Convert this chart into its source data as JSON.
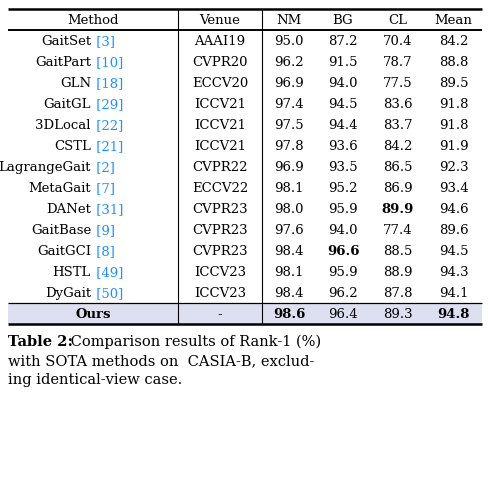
{
  "headers": [
    "Method",
    "Venue",
    "NM",
    "BG",
    "CL",
    "Mean"
  ],
  "rows": [
    [
      "GaitSet",
      "3",
      "AAAI19",
      "95.0",
      "87.2",
      "70.4",
      "84.2",
      false,
      false,
      false,
      false
    ],
    [
      "GaitPart",
      "10",
      "CVPR20",
      "96.2",
      "91.5",
      "78.7",
      "88.8",
      false,
      false,
      false,
      false
    ],
    [
      "GLN",
      "18",
      "ECCV20",
      "96.9",
      "94.0",
      "77.5",
      "89.5",
      false,
      false,
      false,
      false
    ],
    [
      "GaitGL",
      "29",
      "ICCV21",
      "97.4",
      "94.5",
      "83.6",
      "91.8",
      false,
      false,
      false,
      false
    ],
    [
      "3DLocal",
      "22",
      "ICCV21",
      "97.5",
      "94.4",
      "83.7",
      "91.8",
      false,
      false,
      false,
      false
    ],
    [
      "CSTL",
      "21",
      "ICCV21",
      "97.8",
      "93.6",
      "84.2",
      "91.9",
      false,
      false,
      false,
      false
    ],
    [
      "LagrangeGait",
      "2",
      "CVPR22",
      "96.9",
      "93.5",
      "86.5",
      "92.3",
      false,
      false,
      false,
      false
    ],
    [
      "MetaGait",
      "7",
      "ECCV22",
      "98.1",
      "95.2",
      "86.9",
      "93.4",
      false,
      false,
      false,
      false
    ],
    [
      "DANet",
      "31",
      "CVPR23",
      "98.0",
      "95.9",
      "89.9",
      "94.6",
      false,
      false,
      true,
      false
    ],
    [
      "GaitBase",
      "9",
      "CVPR23",
      "97.6",
      "94.0",
      "77.4",
      "89.6",
      false,
      false,
      false,
      false
    ],
    [
      "GaitGCI",
      "8",
      "CVPR23",
      "98.4",
      "96.6",
      "88.5",
      "94.5",
      false,
      true,
      false,
      false
    ],
    [
      "HSTL",
      "49",
      "ICCV23",
      "98.1",
      "95.9",
      "88.9",
      "94.3",
      false,
      false,
      false,
      false
    ],
    [
      "DyGait",
      "50",
      "ICCV23",
      "98.4",
      "96.2",
      "87.8",
      "94.1",
      false,
      false,
      false,
      false
    ]
  ],
  "ours_row": [
    "Ours",
    "-",
    "98.6",
    "96.4",
    "89.3",
    "94.8"
  ],
  "ours_bold": [
    true,
    false,
    true,
    false,
    false,
    true
  ],
  "ref_color": "#1E90FF",
  "ours_bg": "#dde0f0",
  "font_size": 9.5,
  "caption_bold": "Table 2:",
  "caption_rest_line1": " Comparison results of Rank-1 (%)",
  "caption_line2": "with SOTA methods on  CASIA-B, exclud-",
  "caption_line3": "ing identical-view case."
}
